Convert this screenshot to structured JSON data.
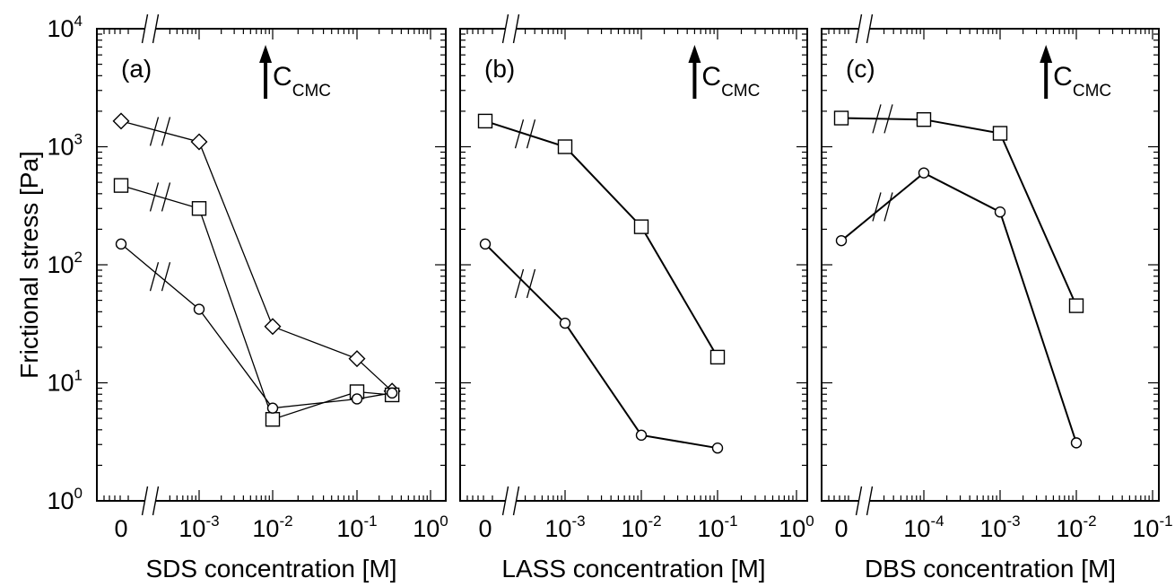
{
  "figure": {
    "ylabel": "Frictional stress [Pa]",
    "cmc_label_main": "C",
    "cmc_label_sub": "CMC"
  },
  "chart_data": [
    {
      "type": "line",
      "panel_label": "(a)",
      "xlabel": "SDS concentration [M]",
      "ylabel": "Frictional stress [Pa]",
      "y_scale": "log",
      "x_scale": "log",
      "ylim": [
        1,
        10000
      ],
      "xlim": [
        0.0001,
        1
      ],
      "axis_break": true,
      "x_tick_labels": [
        {
          "value": 0,
          "base": "0",
          "exp": ""
        },
        {
          "value": 0.001,
          "base": "10",
          "exp": "-3"
        },
        {
          "value": 0.01,
          "base": "10",
          "exp": "-2"
        },
        {
          "value": 0.1,
          "base": "10",
          "exp": "-1"
        },
        {
          "value": 1,
          "base": "10",
          "exp": "0"
        }
      ],
      "cmc_x": 0.008,
      "series": [
        {
          "marker": "diamond",
          "points": [
            [
              0,
              1650
            ],
            [
              0.001,
              1100
            ],
            [
              0.01,
              30
            ],
            [
              0.1,
              16
            ],
            [
              0.3,
              8.5
            ]
          ]
        },
        {
          "marker": "square",
          "points": [
            [
              0,
              470
            ],
            [
              0.001,
              300
            ],
            [
              0.01,
              4.9
            ],
            [
              0.1,
              8.4
            ],
            [
              0.3,
              7.9
            ]
          ]
        },
        {
          "marker": "circle",
          "points": [
            [
              0,
              150
            ],
            [
              0.001,
              42
            ],
            [
              0.01,
              6.1
            ],
            [
              0.1,
              7.3
            ],
            [
              0.3,
              8.2
            ]
          ]
        }
      ]
    },
    {
      "type": "line",
      "panel_label": "(b)",
      "xlabel": "LASS concentration [M]",
      "ylabel": "",
      "y_scale": "log",
      "x_scale": "log",
      "ylim": [
        1,
        10000
      ],
      "xlim": [
        0.0001,
        1
      ],
      "axis_break": true,
      "x_tick_labels": [
        {
          "value": 0,
          "base": "0",
          "exp": ""
        },
        {
          "value": 0.001,
          "base": "10",
          "exp": "-3"
        },
        {
          "value": 0.01,
          "base": "10",
          "exp": "-2"
        },
        {
          "value": 0.1,
          "base": "10",
          "exp": "-1"
        },
        {
          "value": 1,
          "base": "10",
          "exp": "0"
        }
      ],
      "cmc_x": 0.05,
      "series": [
        {
          "marker": "square",
          "points": [
            [
              0,
              1650
            ],
            [
              0.001,
              1000
            ],
            [
              0.01,
              210
            ],
            [
              0.1,
              16.5
            ]
          ]
        },
        {
          "marker": "circle",
          "points": [
            [
              0,
              150
            ],
            [
              0.001,
              32
            ],
            [
              0.01,
              3.6
            ],
            [
              0.1,
              2.8
            ]
          ]
        }
      ]
    },
    {
      "type": "line",
      "panel_label": "(c)",
      "xlabel": "DBS concentration [M]",
      "ylabel": "",
      "y_scale": "log",
      "x_scale": "log",
      "ylim": [
        1,
        10000
      ],
      "xlim": [
        1e-05,
        0.1
      ],
      "axis_break": true,
      "x_tick_labels": [
        {
          "value": 0,
          "base": "0",
          "exp": ""
        },
        {
          "value": 0.0001,
          "base": "10",
          "exp": "-4"
        },
        {
          "value": 0.001,
          "base": "10",
          "exp": "-3"
        },
        {
          "value": 0.01,
          "base": "10",
          "exp": "-2"
        },
        {
          "value": 0.1,
          "base": "10",
          "exp": "-1"
        }
      ],
      "cmc_x": 0.004,
      "series": [
        {
          "marker": "square",
          "points": [
            [
              0,
              1750
            ],
            [
              0.0001,
              1700
            ],
            [
              0.001,
              1300
            ],
            [
              0.01,
              45
            ]
          ]
        },
        {
          "marker": "circle",
          "points": [
            [
              0,
              160
            ],
            [
              0.0001,
              600
            ],
            [
              0.001,
              280
            ],
            [
              0.01,
              3.1
            ]
          ]
        }
      ]
    }
  ]
}
